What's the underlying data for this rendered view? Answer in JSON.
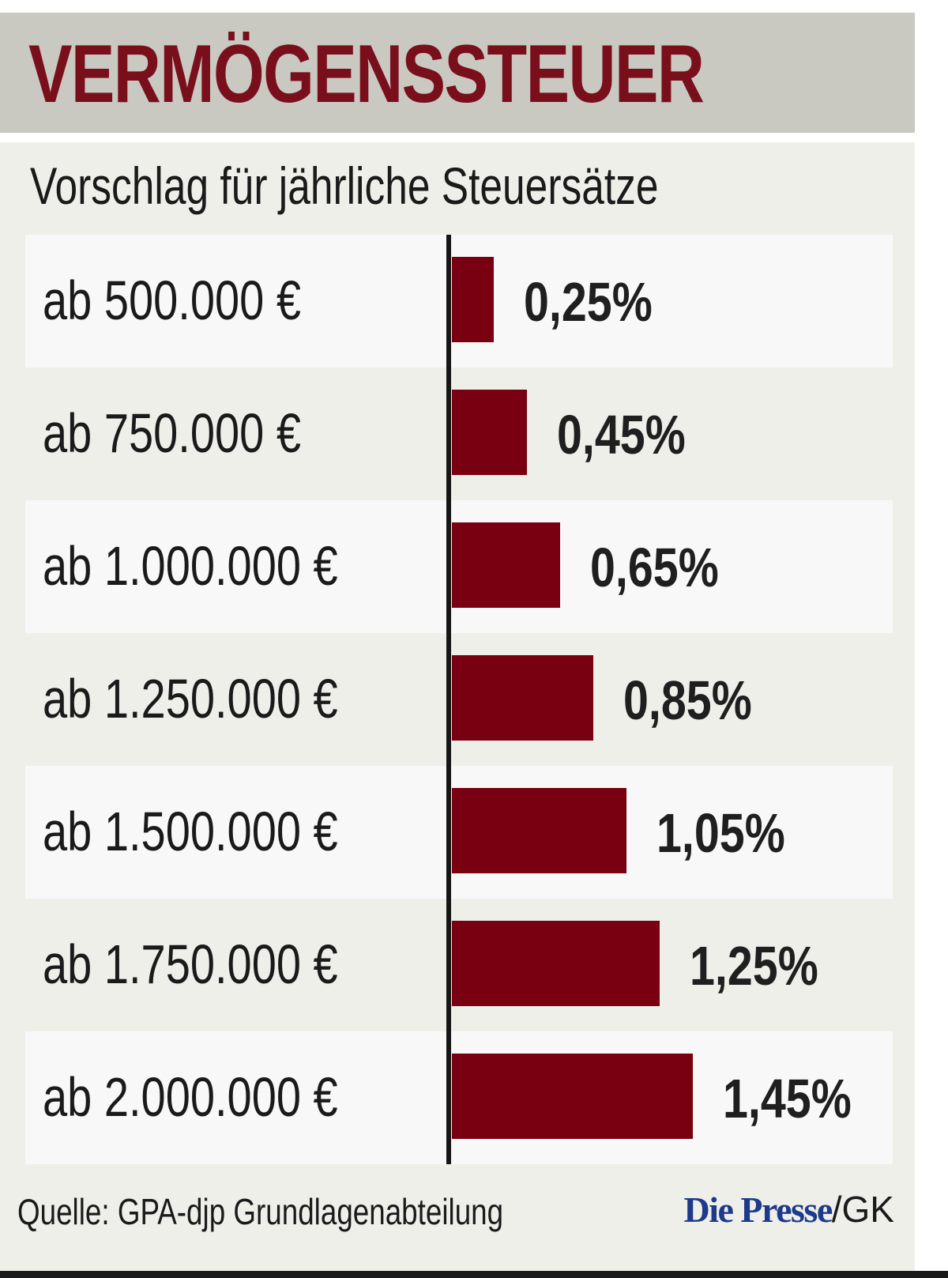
{
  "header": {
    "title": "VERMÖGENSSTEUER",
    "subtitle": "Vorschlag für jährliche Steuersätze"
  },
  "colors": {
    "accent": "#780010",
    "title": "#7a0f1c",
    "title_band": "#c9c9c1",
    "background": "#efefea",
    "row_light": "#f8f8f8",
    "brand": "#1e3a8a"
  },
  "rows": [
    {
      "label": "ab 500.000 €",
      "value_label": "0,25%"
    },
    {
      "label": "ab 750.000 €",
      "value_label": "0,45%"
    },
    {
      "label": "ab 1.000.000 €",
      "value_label": "0,65%"
    },
    {
      "label": "ab 1.250.000 €",
      "value_label": "0,85%"
    },
    {
      "label": "ab 1.500.000 €",
      "value_label": "1,05%"
    },
    {
      "label": "ab 1.750.000 €",
      "value_label": "1,25%"
    },
    {
      "label": "ab 2.000.000 €",
      "value_label": "1,45%"
    }
  ],
  "footer": {
    "source": "Quelle: GPA-djp Grundlagenabteilung",
    "brand": "Die Presse",
    "brand_suffix": "/GK"
  },
  "chart_data": {
    "type": "bar",
    "orientation": "horizontal",
    "title": "VERMÖGENSSTEUER",
    "subtitle": "Vorschlag für jährliche Steuersätze",
    "categories": [
      "ab 500.000 €",
      "ab 750.000 €",
      "ab 1.000.000 €",
      "ab 1.250.000 €",
      "ab 1.500.000 €",
      "ab 1.750.000 €",
      "ab 2.000.000 €"
    ],
    "values": [
      0.25,
      0.45,
      0.65,
      0.85,
      1.05,
      1.25,
      1.45
    ],
    "value_labels": [
      "0,25%",
      "0,45%",
      "0,65%",
      "0,85%",
      "1,05%",
      "1,25%",
      "1,45%"
    ],
    "unit": "%",
    "xlabel": "",
    "ylabel": "",
    "grid": false,
    "legend": null,
    "source": "Quelle: GPA-djp Grundlagenabteilung"
  }
}
